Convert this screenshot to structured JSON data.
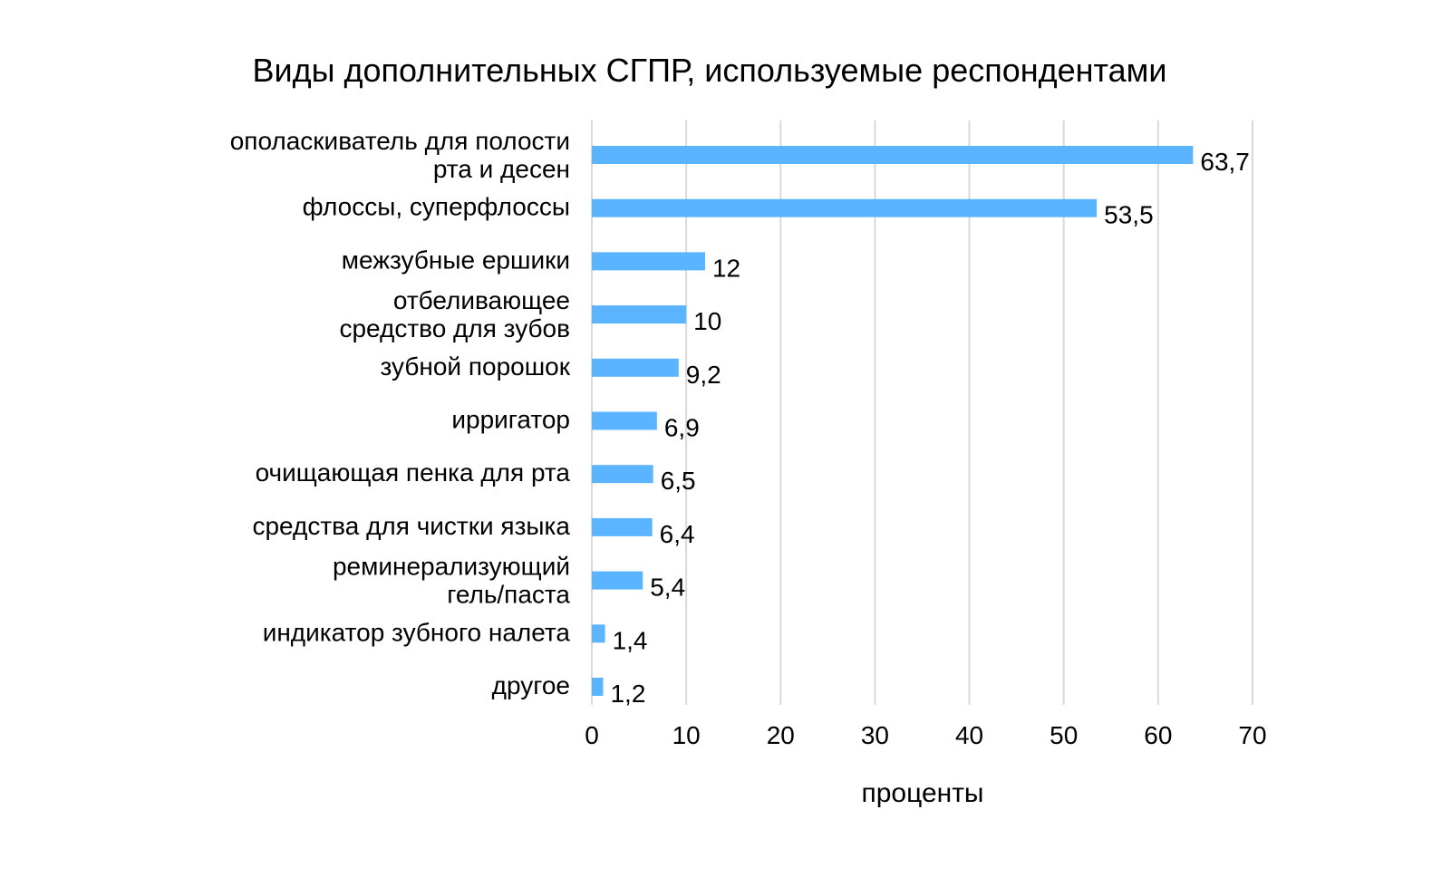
{
  "chart_data": {
    "type": "bar",
    "orientation": "horizontal",
    "title": "Виды дополнительных СГПР, используемые респондентами",
    "xlabel": "проценты",
    "ylabel": "",
    "categories": [
      [
        "ополаскиватель для полости",
        "рта и десен"
      ],
      [
        "флоссы, суперфлоссы"
      ],
      [
        "межзубные ершики"
      ],
      [
        "отбеливающее",
        "средство для зубов"
      ],
      [
        "зубной порошок"
      ],
      [
        "ирригатор"
      ],
      [
        "очищающая пенка для рта"
      ],
      [
        "средства для чистки языка"
      ],
      [
        "реминерализующий",
        "гель/паста"
      ],
      [
        "индикатор зубного налета"
      ],
      [
        "другое"
      ]
    ],
    "values": [
      63.7,
      53.5,
      12,
      10,
      9.2,
      6.9,
      6.5,
      6.4,
      5.4,
      1.4,
      1.2
    ],
    "value_labels": [
      "63,7",
      "53,5",
      "12",
      "10",
      "9,2",
      "6,9",
      "6,5",
      "6,4",
      "5,4",
      "1,4",
      "1,2"
    ],
    "xlim": [
      0,
      70
    ],
    "xticks": [
      0,
      10,
      20,
      30,
      40,
      50,
      60,
      70
    ],
    "xtick_labels": [
      "0",
      "10",
      "20",
      "30",
      "40",
      "50",
      "60",
      "70"
    ],
    "grid": true,
    "legend": "none",
    "colors": {
      "bar": "#5BB4FF",
      "grid": "#D9D9D9",
      "text": "#111111"
    }
  }
}
